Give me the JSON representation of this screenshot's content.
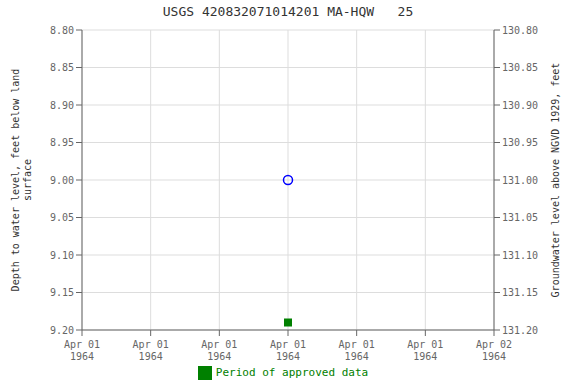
{
  "chart_data": {
    "type": "scatter",
    "title": "USGS 420832071014201 MA-HQW   25",
    "ylabel": "Depth to water level, feet below land\n surface",
    "y2label": "Groundwater level above NGVD 1929, feet",
    "categories": [
      "Apr 01\n1964",
      "Apr 01\n1964",
      "Apr 01\n1964",
      "Apr 01\n1964",
      "Apr 01\n1964",
      "Apr 01\n1964",
      "Apr 02\n1964"
    ],
    "series": [
      {
        "values": [
          null,
          null,
          null,
          9.0,
          null,
          null,
          null
        ],
        "color": "blue",
        "marker": "open_circle"
      },
      {
        "name": "Period of approved data",
        "values": [
          null,
          null,
          null,
          9.19,
          null,
          null,
          null
        ],
        "color": "#008000",
        "marker": "square"
      }
    ],
    "ylim": [
      9.2,
      8.8
    ],
    "yticks": [
      {
        "value": 8.8,
        "label": "8.80"
      },
      {
        "value": 8.85,
        "label": "8.85"
      },
      {
        "value": 8.9,
        "label": "8.90"
      },
      {
        "value": 8.95,
        "label": "8.95"
      },
      {
        "value": 9.0,
        "label": "9.00"
      },
      {
        "value": 9.05,
        "label": "9.05"
      },
      {
        "value": 9.1,
        "label": "9.10"
      },
      {
        "value": 9.15,
        "label": "9.15"
      },
      {
        "value": 9.2,
        "label": "9.20"
      }
    ],
    "y2lim": [
      131.2,
      130.8
    ],
    "y2ticks": [
      {
        "value": 130.8,
        "label": "130.80"
      },
      {
        "value": 130.85,
        "label": "130.85"
      },
      {
        "value": 130.9,
        "label": "130.90"
      },
      {
        "value": 130.95,
        "label": "130.95"
      },
      {
        "value": 131.0,
        "label": "131.00"
      },
      {
        "value": 131.05,
        "label": "131.05"
      },
      {
        "value": 131.1,
        "label": "131.10"
      },
      {
        "value": 131.15,
        "label": "131.15"
      },
      {
        "value": 131.2,
        "label": "131.20"
      }
    ],
    "grid": true,
    "legend": "bottom"
  }
}
